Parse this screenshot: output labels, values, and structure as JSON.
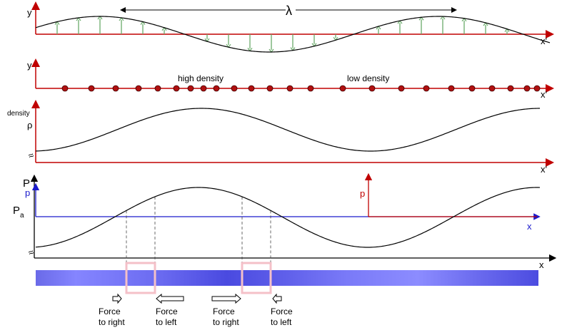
{
  "panel1": {
    "y_label": "y",
    "x_label": "x'",
    "lambda_label": "λ"
  },
  "panel2": {
    "y_label": "y",
    "x_label": "x'",
    "high_label": "high density",
    "low_label": "low density"
  },
  "panel3": {
    "density_label": "density",
    "rho_label": "ρ",
    "x_label": "x'",
    "break_symbol": "≈"
  },
  "panel4": {
    "P_label": "P",
    "p_label": "p",
    "Pa_main": "P",
    "Pa_sub": "a",
    "p_red_label": "p",
    "x_blue_label": "x",
    "x_label": "x",
    "break_symbol": "≈"
  },
  "forces": [
    {
      "line1": "Force",
      "line2": "to right",
      "direction": "right"
    },
    {
      "line1": "Force",
      "line2": "to left",
      "direction": "left"
    },
    {
      "line1": "Force",
      "line2": "to right",
      "direction": "right"
    },
    {
      "line1": "Force",
      "line2": "to left",
      "direction": "left"
    }
  ],
  "colors": {
    "axis_red": "#c00000",
    "axis_blue": "#1a1acc",
    "displacement_green": "#6aaa6a",
    "particle": "#b01010",
    "tube_dark": "#5555e0",
    "tube_light": "#8c8cff",
    "highlight": "#f4c0c8"
  }
}
